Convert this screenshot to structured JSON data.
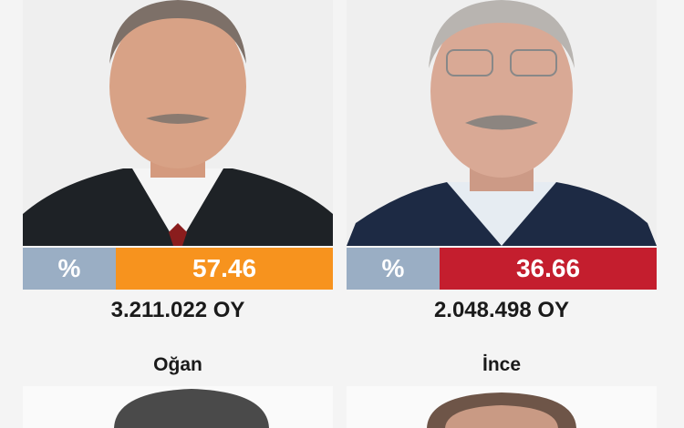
{
  "candidates": [
    {
      "percent_symbol": "%",
      "percent": "57.46",
      "votes": "3.211.022 OY",
      "color": "#f7931e"
    },
    {
      "percent_symbol": "%",
      "percent": "36.66",
      "votes": "2.048.498 OY",
      "color": "#c41e2e"
    }
  ],
  "lower_candidates": [
    {
      "name": "Oğan"
    },
    {
      "name": "İnce"
    }
  ],
  "colors": {
    "percent_box": "#9aaec4",
    "background": "#f4f4f4"
  }
}
